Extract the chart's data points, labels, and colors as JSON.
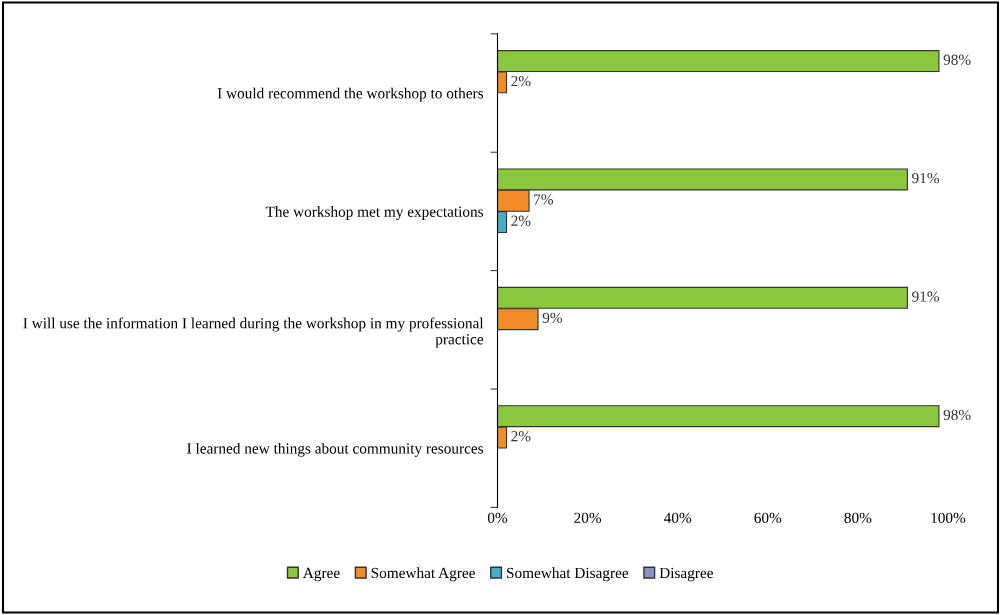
{
  "chart_data": {
    "type": "bar",
    "orientation": "horizontal",
    "categories": [
      "I would recommend the workshop to others",
      "The workshop met my expectations",
      "I will use the information I learned during the workshop in my professional practice",
      "I learned new things about community resources"
    ],
    "series": [
      {
        "name": "Agree",
        "color": "#8cc63e",
        "values": [
          98,
          91,
          91,
          98
        ],
        "value_labels": [
          "98%",
          "91%",
          "91%",
          "98%"
        ]
      },
      {
        "name": "Somewhat Agree",
        "color": "#f28c28",
        "values": [
          2,
          7,
          9,
          2
        ],
        "value_labels": [
          "2%",
          "7%",
          "9%",
          "2%"
        ]
      },
      {
        "name": "Somewhat Disagree",
        "color": "#4bacc6",
        "values": [
          null,
          2,
          null,
          null
        ],
        "value_labels": [
          null,
          "2%",
          null,
          null
        ]
      },
      {
        "name": "Disagree",
        "color": "#8f8fc8",
        "values": [
          null,
          null,
          null,
          null
        ],
        "value_labels": [
          null,
          null,
          null,
          null
        ]
      }
    ],
    "xlim": [
      0,
      100
    ],
    "xticks": [
      {
        "value": 0,
        "label": "0%"
      },
      {
        "value": 20,
        "label": "20%"
      },
      {
        "value": 40,
        "label": "40%"
      },
      {
        "value": 60,
        "label": "60%"
      },
      {
        "value": 80,
        "label": "80%"
      },
      {
        "value": 100,
        "label": "100%"
      }
    ],
    "grid": false,
    "legend": "bottom"
  }
}
